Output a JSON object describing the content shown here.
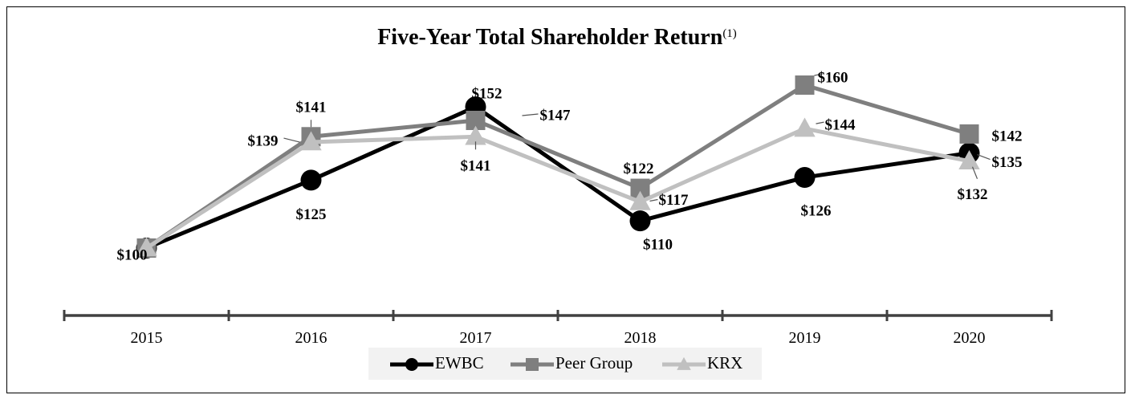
{
  "chart_data": {
    "type": "line",
    "title": "Five-Year Total Shareholder Return",
    "title_superscript": "(1)",
    "categories": [
      "2015",
      "2016",
      "2017",
      "2018",
      "2019",
      "2020"
    ],
    "ylim": [
      60,
      180
    ],
    "grid": false,
    "legend_position": "bottom-center",
    "series": [
      {
        "name": "EWBC",
        "color": "#000000",
        "marker": "circle",
        "values": [
          100,
          125,
          152,
          110,
          126,
          135
        ],
        "labels": [
          "$100",
          "$125",
          "$152",
          "$110",
          "$126",
          "$135"
        ]
      },
      {
        "name": "Peer Group",
        "color": "#7f7f7f",
        "marker": "square",
        "values": [
          100,
          141,
          147,
          122,
          160,
          142
        ],
        "labels": [
          "",
          "$141",
          "$147",
          "$122",
          "$160",
          "$142"
        ]
      },
      {
        "name": "KRX",
        "color": "#c0c0c0",
        "marker": "triangle",
        "values": [
          100,
          139,
          141,
          117,
          144,
          132
        ],
        "labels": [
          "",
          "$139",
          "$141",
          "$117",
          "$144",
          "$132"
        ]
      }
    ]
  }
}
